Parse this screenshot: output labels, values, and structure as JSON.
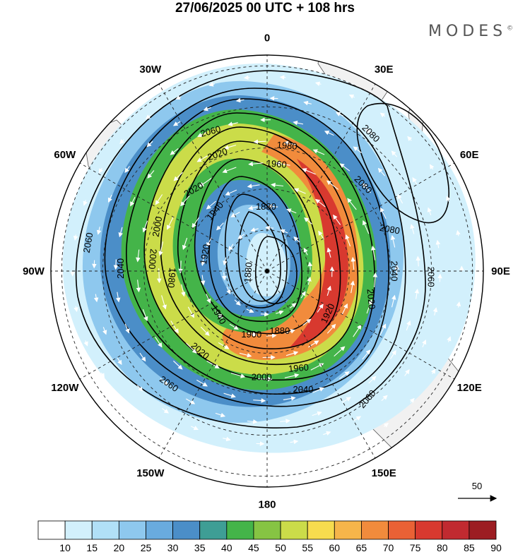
{
  "title": "27/06/2025  00 UTC  + 108 hrs",
  "brand": "MODES",
  "brand_mark": "©",
  "longitude_labels": [
    {
      "id": "lon-0",
      "text": "0",
      "deg": 0
    },
    {
      "id": "lon-30e",
      "text": "30E",
      "deg": 30
    },
    {
      "id": "lon-60e",
      "text": "60E",
      "deg": 60
    },
    {
      "id": "lon-90e",
      "text": "90E",
      "deg": 90
    },
    {
      "id": "lon-120e",
      "text": "120E",
      "deg": 120
    },
    {
      "id": "lon-150e",
      "text": "150E",
      "deg": 150
    },
    {
      "id": "lon-180",
      "text": "180",
      "deg": 180
    },
    {
      "id": "lon-150w",
      "text": "150W",
      "deg": 210
    },
    {
      "id": "lon-120w",
      "text": "120W",
      "deg": 240
    },
    {
      "id": "lon-90w",
      "text": "90W",
      "deg": 270
    },
    {
      "id": "lon-60w",
      "text": "60W",
      "deg": 300
    },
    {
      "id": "lon-30w",
      "text": "30W",
      "deg": 330
    }
  ],
  "contour_labels": [
    {
      "text": "2080",
      "deg": 37,
      "r": 0.8,
      "rot": 45
    },
    {
      "text": "2080",
      "deg": 48,
      "r": 0.6,
      "rot": 45
    },
    {
      "text": "2080",
      "deg": 71,
      "r": 0.6,
      "rot": 10
    },
    {
      "text": "2060",
      "deg": 338,
      "r": 0.7,
      "rot": -15
    },
    {
      "text": "2060",
      "deg": 279,
      "r": 0.84,
      "rot": -80
    },
    {
      "text": "2060",
      "deg": 92,
      "r": 0.76,
      "rot": 90
    },
    {
      "text": "2060",
      "deg": 142,
      "r": 0.75,
      "rot": -50
    },
    {
      "text": "2060",
      "deg": 221,
      "r": 0.69,
      "rot": 35
    },
    {
      "text": "2040",
      "deg": 271,
      "r": 0.68,
      "rot": -90
    },
    {
      "text": "2040",
      "deg": 90,
      "r": 0.59,
      "rot": 90
    },
    {
      "text": "2040",
      "deg": 163,
      "r": 0.57,
      "rot": 0
    },
    {
      "text": "2020",
      "deg": 337,
      "r": 0.59,
      "rot": -20
    },
    {
      "text": "2020",
      "deg": 318,
      "r": 0.51,
      "rot": -30
    },
    {
      "text": "2020",
      "deg": 105,
      "r": 0.5,
      "rot": 85
    },
    {
      "text": "2020",
      "deg": 220,
      "r": 0.48,
      "rot": 40
    },
    {
      "text": "2000",
      "deg": 292,
      "r": 0.55,
      "rot": -80
    },
    {
      "text": "2000",
      "deg": 276,
      "r": 0.53,
      "rot": 95
    },
    {
      "text": "2000",
      "deg": 183,
      "r": 0.49,
      "rot": 0
    },
    {
      "text": "1980",
      "deg": 9,
      "r": 0.59,
      "rot": 5
    },
    {
      "text": "1980",
      "deg": 266,
      "r": 0.44,
      "rot": 95
    },
    {
      "text": "1960",
      "deg": 5,
      "r": 0.5,
      "rot": 5
    },
    {
      "text": "1960",
      "deg": 162,
      "r": 0.47,
      "rot": -5
    },
    {
      "text": "1940",
      "deg": 319,
      "r": 0.37,
      "rot": -50
    },
    {
      "text": "1940",
      "deg": 228,
      "r": 0.3,
      "rot": 60
    },
    {
      "text": "1920",
      "deg": 285,
      "r": 0.3,
      "rot": -80
    },
    {
      "text": "1920",
      "deg": 125,
      "r": 0.34,
      "rot": -65
    },
    {
      "text": "1900",
      "deg": 194,
      "r": 0.3,
      "rot": 0
    },
    {
      "text": "1880",
      "deg": 359,
      "r": 0.3,
      "rot": 0
    },
    {
      "text": "1880",
      "deg": 266,
      "r": 0.09,
      "rot": -85
    },
    {
      "text": "1880",
      "deg": 168,
      "r": 0.28,
      "rot": 0
    }
  ],
  "colorbar": {
    "labels": [
      "10",
      "15",
      "20",
      "25",
      "30",
      "35",
      "40",
      "45",
      "50",
      "55",
      "60",
      "65",
      "70",
      "75",
      "80",
      "85",
      "90"
    ],
    "colors": [
      "#ffffff",
      "#d2f0fc",
      "#b1e0f7",
      "#8ec8ee",
      "#69abde",
      "#4b8ec8",
      "#3e9e95",
      "#44b449",
      "#86c443",
      "#cbdc49",
      "#f7dc4e",
      "#f6b54a",
      "#f18b3c",
      "#e96135",
      "#d8392f",
      "#c12a30",
      "#9c1d22"
    ]
  },
  "wind_reference": {
    "label": "50"
  },
  "field": {
    "center_marker": "pole"
  },
  "icons": [
    "pole-marker",
    "reference-arrow-icon"
  ]
}
